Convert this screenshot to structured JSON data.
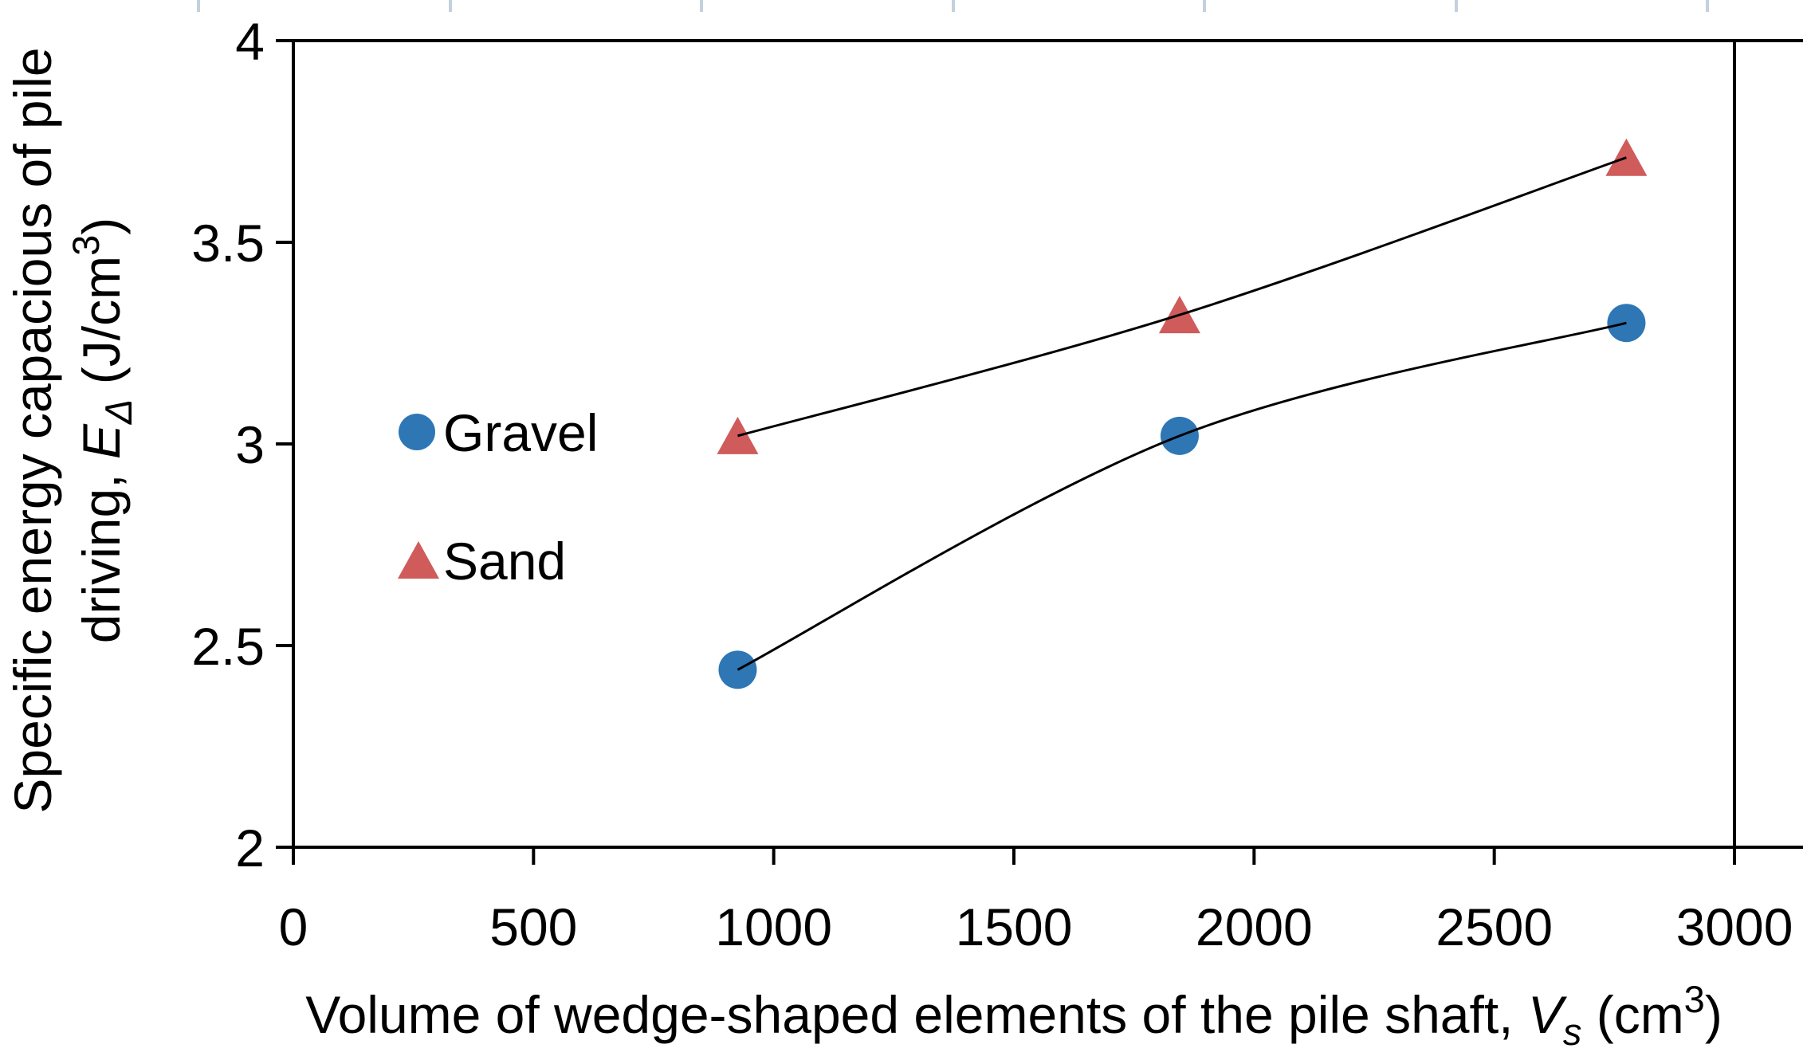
{
  "chart_data": {
    "type": "scatter",
    "title": "",
    "xlabel_plain": "Volume of wedge-shaped elements of the pile shaft, Vs (cm3)",
    "xlabel_segments": [
      {
        "t": "Volume of wedge-shaped elements of the pile shaft, "
      },
      {
        "t": "V",
        "style": "italic"
      },
      {
        "t": "s",
        "style": "sub-italic"
      },
      {
        "t": " (cm"
      },
      {
        "t": "3",
        "style": "sup"
      },
      {
        "t": ")"
      }
    ],
    "ylabel_plain": "Specific energy capacious of pile driving, EΔ (J/cm3)",
    "ylabel_line1": "Specific energy capacious of pile",
    "ylabel_line2_segments": [
      {
        "t": "driving, "
      },
      {
        "t": "E",
        "style": "italic"
      },
      {
        "t": "Δ",
        "style": "sub-italic"
      },
      {
        "t": " (J/cm"
      },
      {
        "t": "3",
        "style": "sup"
      },
      {
        "t": ")"
      }
    ],
    "xlim": [
      0,
      3000
    ],
    "ylim": [
      2,
      4
    ],
    "x_ticks": [
      0,
      500,
      1000,
      1500,
      2000,
      2500,
      3000
    ],
    "x_tick_labels": [
      "0",
      "500",
      "1000",
      "1500",
      "2000",
      "2500",
      "3000"
    ],
    "y_ticks": [
      2,
      2.5,
      3,
      3.5,
      4
    ],
    "y_tick_labels": [
      "2",
      "2.5",
      "3",
      "3.5",
      "4"
    ],
    "grid": false,
    "legend_position": "inside-upper-left",
    "series": [
      {
        "name": "Gravel",
        "marker": "circle",
        "color": "#2E76B4",
        "x": [
          925,
          1845,
          2775
        ],
        "y": [
          2.44,
          3.02,
          3.3
        ],
        "trendline": true
      },
      {
        "name": "Sand",
        "marker": "triangle",
        "color": "#D05B5B",
        "x": [
          925,
          1845,
          2775
        ],
        "y": [
          3.02,
          3.32,
          3.71
        ],
        "trendline": true
      }
    ],
    "trendline_color": "#000000",
    "axis_color": "#000000"
  },
  "decor": {
    "top_tick_xs": [
      249,
      565,
      880,
      1196,
      1511,
      1827,
      2142
    ],
    "top_tick_color": "#C3D0DE"
  }
}
